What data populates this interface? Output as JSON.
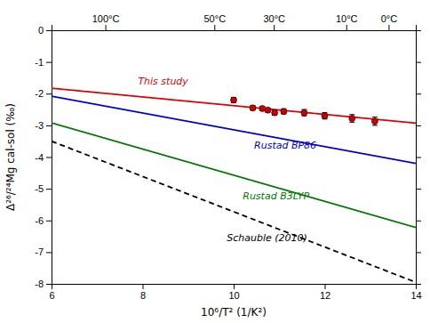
{
  "chart_data": {
    "type": "line",
    "xlabel": "10⁶/T² (1/K²)",
    "ylabel": "Δ²⁶/²⁴Mg cal-sol (‰)",
    "xlim": [
      6,
      14
    ],
    "ylim": [
      -8,
      0
    ],
    "xticks": [
      6,
      8,
      10,
      12,
      14
    ],
    "yticks": [
      0,
      -1,
      -2,
      -3,
      -4,
      -5,
      -6,
      -7,
      -8
    ],
    "x2lim": [
      6,
      14
    ],
    "x2ticks": [
      {
        "value": 7.181797,
        "label": "100°C"
      },
      {
        "value": 9.576166,
        "label": "50°C"
      },
      {
        "value": 10.881402,
        "label": "30°C"
      },
      {
        "value": 12.472884,
        "label": "10°C"
      },
      {
        "value": 13.402863,
        "label": "0°C"
      }
    ],
    "series": [
      {
        "type": "line",
        "color": "#dd0000",
        "line_style": "solid",
        "x": [
          6,
          14
        ],
        "values": [
          -1.83,
          -2.93
        ]
      },
      {
        "type": "line",
        "color": "#0000cc",
        "line_style": "solid",
        "x": [
          6,
          14
        ],
        "values": [
          -2.08,
          -4.2
        ]
      },
      {
        "type": "line",
        "color": "#007700",
        "line_style": "solid",
        "x": [
          6,
          14
        ],
        "values": [
          -2.92,
          -6.22
        ]
      },
      {
        "type": "line",
        "color": "#000000",
        "line_style": "dashed",
        "x": [
          6,
          14
        ],
        "values": [
          -3.5,
          -7.95
        ]
      },
      {
        "type": "scatter",
        "color": "#cc0000",
        "marker": "circle",
        "x": [
          10.0,
          10.42,
          10.63,
          10.75,
          10.9,
          11.1,
          11.55,
          12.0,
          12.6,
          13.1
        ],
        "values": [
          -2.2,
          -2.45,
          -2.47,
          -2.52,
          -2.6,
          -2.56,
          -2.6,
          -2.7,
          -2.78,
          -2.87
        ],
        "yerr": [
          0.08,
          0.07,
          0.06,
          0.06,
          0.08,
          0.08,
          0.1,
          0.1,
          0.12,
          0.13
        ]
      }
    ],
    "annotations": [
      {
        "text": "This study",
        "x": 7.9,
        "y": -1.72,
        "color": "#dd0000"
      },
      {
        "text": "Rustad BP86",
        "x": 10.45,
        "y": -3.72,
        "color": "#0000cc"
      },
      {
        "text": "Rustad B3LYP",
        "x": 10.2,
        "y": -5.32,
        "color": "#007700"
      },
      {
        "text": "Schauble (2010)",
        "x": 9.85,
        "y": -6.65,
        "color": "#000000"
      }
    ]
  }
}
